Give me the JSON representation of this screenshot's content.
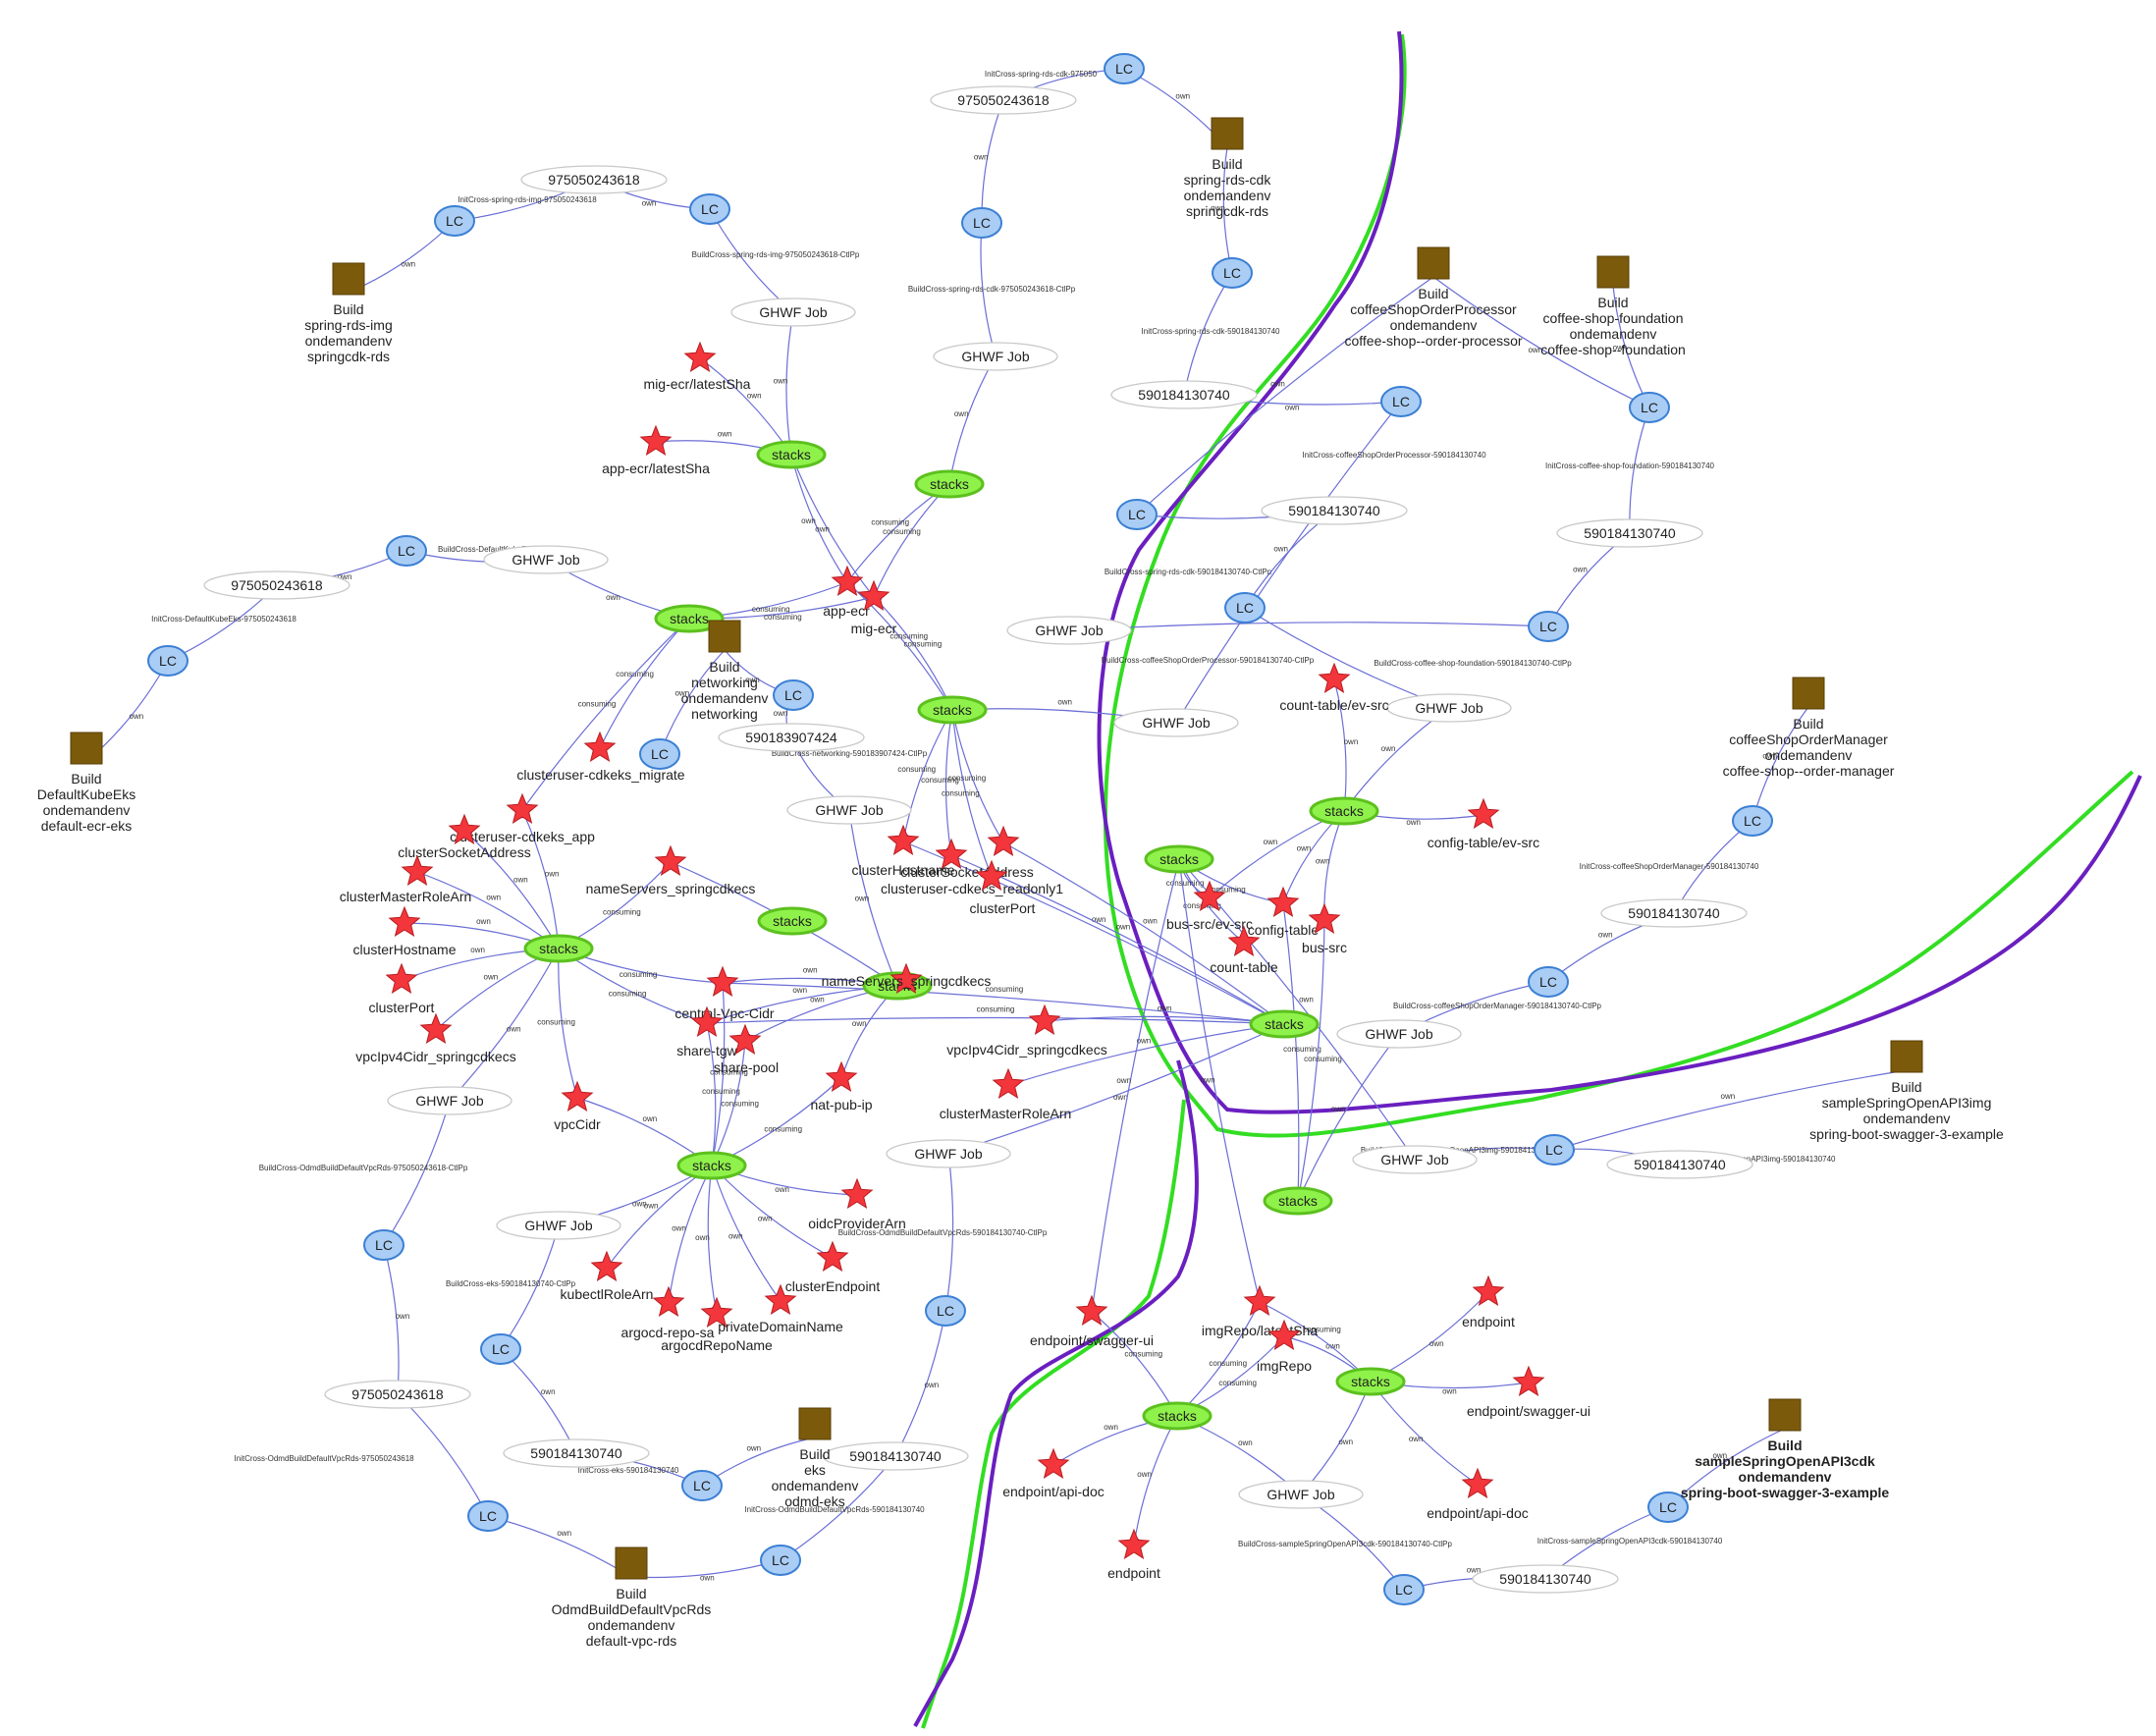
{
  "colors": {
    "edge": "#6b6ed6",
    "edge_highlight": "#1d2be0",
    "lc_fill": "#a9cdf5",
    "lc_stroke": "#3b7fd4",
    "stack_fill": "#8ff24a",
    "stack_stroke": "#5cc01e",
    "build_fill": "#7b5a0c",
    "star_fill": "#f2363b",
    "star_stroke": "#b81c20",
    "ellipse_stroke": "#c8c8c8",
    "boundary_green": "#33dd22",
    "boundary_purple": "#6a1fc0"
  },
  "nodes": {
    "lc1": "LC",
    "lc2": "LC",
    "lc3": "LC",
    "lc4": "LC",
    "lc5": "LC",
    "lc6": "LC",
    "lc7": "LC",
    "lc8": "LC",
    "lc9": "LC",
    "lc10": "LC",
    "lc11": "LC",
    "lc12": "LC",
    "lc13": "LC",
    "lc14": "LC",
    "lc15": "LC",
    "lc16": "LC",
    "lc17": "LC",
    "lc18": "LC",
    "lc19": "LC",
    "lc20": "LC",
    "lc21": "LC",
    "lc22": "LC",
    "acct_975_a": "975050243618",
    "acct_975_b": "975050243618",
    "acct_975_c": "975050243618",
    "acct_975_d": "975050243618",
    "acct_590_a": "590184130740",
    "acct_590_b": "590184130740",
    "acct_590_c": "590184130740",
    "acct_590_d": "590184130740",
    "acct_590_e": "590184130740",
    "acct_590_f": "590184130740",
    "acct_590_g": "590184130740",
    "acct_590_h": "590184130740",
    "acct_590_net": "590183907424",
    "ghwf": "GHWF Job",
    "stacks": "stacks"
  },
  "builds": {
    "spring_rds_img": [
      "Build",
      "spring-rds-img",
      "ondemandenv",
      "springcdk-rds"
    ],
    "spring_rds_cdk": [
      "Build",
      "spring-rds-cdk",
      "ondemandenv",
      "springcdk-rds"
    ],
    "coffee_order_processor": [
      "Build",
      "coffeeShopOrderProcessor",
      "ondemandenv",
      "coffee-shop--order-processor"
    ],
    "coffee_foundation": [
      "Build",
      "coffee-shop-foundation",
      "ondemandenv",
      "coffee-shop--foundation"
    ],
    "default_kube_eks": [
      "Build",
      "DefaultKubeEks",
      "ondemandenv",
      "default-ecr-eks"
    ],
    "networking": [
      "Build",
      "networking",
      "ondemandenv",
      "networking"
    ],
    "coffee_order_manager": [
      "Build",
      "coffeeShopOrderManager",
      "ondemandenv",
      "coffee-shop--order-manager"
    ],
    "sample_openapi_img": [
      "Build",
      "sampleSpringOpenAPI3img",
      "ondemandenv",
      "spring-boot-swagger-3-example"
    ],
    "sample_openapi_cdk": [
      "Build",
      "sampleSpringOpenAPI3cdk",
      "ondemandenv",
      "spring-boot-swagger-3-example"
    ],
    "eks": [
      "Build",
      "eks",
      "ondemandenv",
      "odmd-eks"
    ],
    "odmd_vpc_rds": [
      "Build",
      "OdmdBuildDefaultVpcRds",
      "ondemandenv",
      "default-vpc-rds"
    ]
  },
  "stars": {
    "mig_ecr_latest": "mig-ecr/latestSha",
    "app_ecr_latest": "app-ecr/latestSha",
    "app_ecr": "app-ecr",
    "mig_ecr": "mig-ecr",
    "clusteruser_migrate": "clusteruser-cdkeks_migrate",
    "clusteruser_app": "clusteruser-cdkeks_app",
    "cluster_socket_address_l": "clusterSocketAddress",
    "cluster_master_role_l": "clusterMasterRoleArn",
    "cluster_hostname_l": "clusterHostname",
    "cluster_port_l": "clusterPort",
    "vpc_ipv4_l": "vpcIpv4Cidr_springcdkecs",
    "nameservers_a": "nameServers_springcdkecs",
    "nameservers_b": "nameServers_springcdkecs",
    "central_vpc": "central-Vpc-Cidr",
    "share_tgw": "share-tgw",
    "share_pool": "share-pool",
    "nat_pub_ip": "nat-pub-ip",
    "vpc_cidr": "vpcCidr",
    "cluster_host_r": "clusterHostname",
    "cluster_socket_r": "clusterSocketAddress",
    "clusteruser_readonly": "clusteruser-cdkecs_readonly1",
    "cluster_port_r": "clusterPort",
    "vpc_ipv4_r": "vpcIpv4Cidr_springcdkecs",
    "cluster_master_role_r": "clusterMasterRoleArn",
    "oidc": "oidcProviderArn",
    "cluster_endpoint": "clusterEndpoint",
    "kubectl_role": "kubectlRoleArn",
    "argocd_repo_sa": "argocd-repo-sa",
    "argocd_repo_name": "argocdRepoName",
    "private_domain": "privateDomainName",
    "count_table_ev": "count-table/ev-src",
    "config_table_ev": "config-table/ev-src",
    "bus_src_ev": "bus-src/ev-src",
    "config_table": "config-table",
    "bus_src": "bus-src",
    "count_table": "count-table",
    "endpoint_swagger_l": "endpoint/swagger-ui",
    "img_repo_latest": "imgRepo/latestSha",
    "img_repo": "imgRepo",
    "endpoint_r1": "endpoint",
    "endpoint_swagger_r": "endpoint/swagger-ui",
    "endpoint_api_doc_l": "endpoint/api-doc",
    "endpoint_l": "endpoint",
    "endpoint_api_doc_r": "endpoint/api-doc"
  },
  "edge_labels": {
    "own": "own",
    "consuming": "consuming",
    "init_img": "InitCross-spring-rds-img-975050243618",
    "build_img": "BuildCross-spring-rds-img-975050243618-CtlPp",
    "init_cdk": "InitCross-spring-rds-cdk-975050",
    "build_cdk_975": "BuildCross-spring-rds-cdk-975050243618-CtlPp",
    "init_cdk_590": "InitCross-spring-rds-cdk-590184130740",
    "build_cdk_590": "BuildCross-spring-rds-cdk-590184130740-CtlPp",
    "init_kube": "InitCross-DefaultKubeEks-975050243618",
    "build_kube": "BuildCross-DefaultKubeEks-975050",
    "build_networking": "BuildCross-networking-590183907424-CtlPp",
    "init_cop": "InitCross-coffeeShopOrderProcessor-590184130740",
    "build_cop": "BuildCross-coffeeShopOrderProcessor-590184130740-CtlPp",
    "init_csf": "InitCross-coffee-shop-foundation-590184130740",
    "build_csf": "BuildCross-coffee-shop-foundation-590184130740-CtlPp",
    "init_com": "InitCross-coffeeShopOrderManager-590184130740",
    "build_com": "BuildCross-coffeeShopOrderManager-590184130740-CtlPp",
    "build_openapi_img": "BuildCross-sampleSpringOpenAPI3img-590184130740-CtlPp",
    "init_openapi_img": "InitCross-sampleSpringOpenAPI3img-590184130740",
    "init_openapi_cdk": "InitCross-sampleSpringOpenAPI3cdk-590184130740",
    "build_openapi_cdk": "BuildCross-sampleSpringOpenAPI3cdk-590184130740-CtlPp",
    "build_odmd_975": "BuildCross-OdmdBuildDefaultVpcRds-975050243618-CtlPp",
    "init_odmd_975": "InitCross-OdmdBuildDefaultVpcRds-975050243618",
    "init_odmd_590": "InitCross-OdmdBuildDefaultVpcRds-590184130740",
    "build_odmd_590": "BuildCross-OdmdBuildDefaultVpcRds-590184130740-CtlPp",
    "init_eks": "InitCross-eks-590184130740",
    "build_eks": "BuildCross-eks-590184130740-CtlPp"
  }
}
